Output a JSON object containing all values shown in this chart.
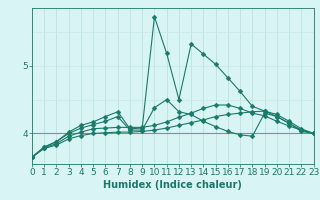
{
  "x": [
    0,
    1,
    2,
    3,
    4,
    5,
    6,
    7,
    8,
    9,
    10,
    11,
    12,
    13,
    14,
    15,
    16,
    17,
    18,
    19,
    20,
    21,
    22,
    23
  ],
  "series": [
    [
      3.65,
      3.78,
      3.83,
      3.92,
      3.97,
      4.0,
      4.01,
      4.02,
      4.02,
      4.03,
      4.05,
      4.08,
      4.12,
      4.16,
      4.2,
      4.25,
      4.28,
      4.3,
      4.32,
      4.33,
      4.28,
      4.18,
      4.07,
      4.0
    ],
    [
      3.65,
      3.79,
      3.85,
      3.96,
      4.02,
      4.07,
      4.08,
      4.09,
      4.09,
      4.09,
      4.12,
      4.17,
      4.24,
      4.3,
      4.37,
      4.42,
      4.42,
      4.37,
      4.3,
      4.26,
      4.18,
      4.11,
      4.05,
      4.0
    ],
    [
      3.65,
      3.8,
      3.88,
      4.0,
      4.08,
      4.13,
      4.18,
      4.25,
      4.05,
      4.05,
      4.38,
      4.5,
      4.32,
      4.28,
      4.18,
      4.1,
      4.03,
      3.98,
      3.96,
      4.3,
      4.25,
      4.15,
      4.05,
      4.0
    ],
    [
      3.65,
      3.8,
      3.88,
      4.02,
      4.12,
      4.17,
      4.25,
      4.32,
      4.07,
      4.08,
      5.72,
      5.18,
      4.5,
      5.32,
      5.17,
      5.02,
      4.82,
      4.62,
      4.4,
      4.33,
      4.25,
      4.15,
      4.03,
      4.0
    ]
  ],
  "line_color": "#1a7a6a",
  "bg_color": "#d8f4f4",
  "grid_color_v": "#b8dede",
  "grid_color_h": "#c8e8e8",
  "hline_color": "#d07070",
  "hline_y": 4.0,
  "xlabel": "Humidex (Indice chaleur)",
  "xlim": [
    0,
    23
  ],
  "ylim": [
    3.55,
    5.85
  ],
  "yticks": [
    4,
    5
  ],
  "xticks": [
    0,
    1,
    2,
    3,
    4,
    5,
    6,
    7,
    8,
    9,
    10,
    11,
    12,
    13,
    14,
    15,
    16,
    17,
    18,
    19,
    20,
    21,
    22,
    23
  ],
  "marker": "D",
  "markersize": 2.5,
  "linewidth": 0.8,
  "xlabel_fontsize": 7,
  "tick_fontsize": 6.5
}
